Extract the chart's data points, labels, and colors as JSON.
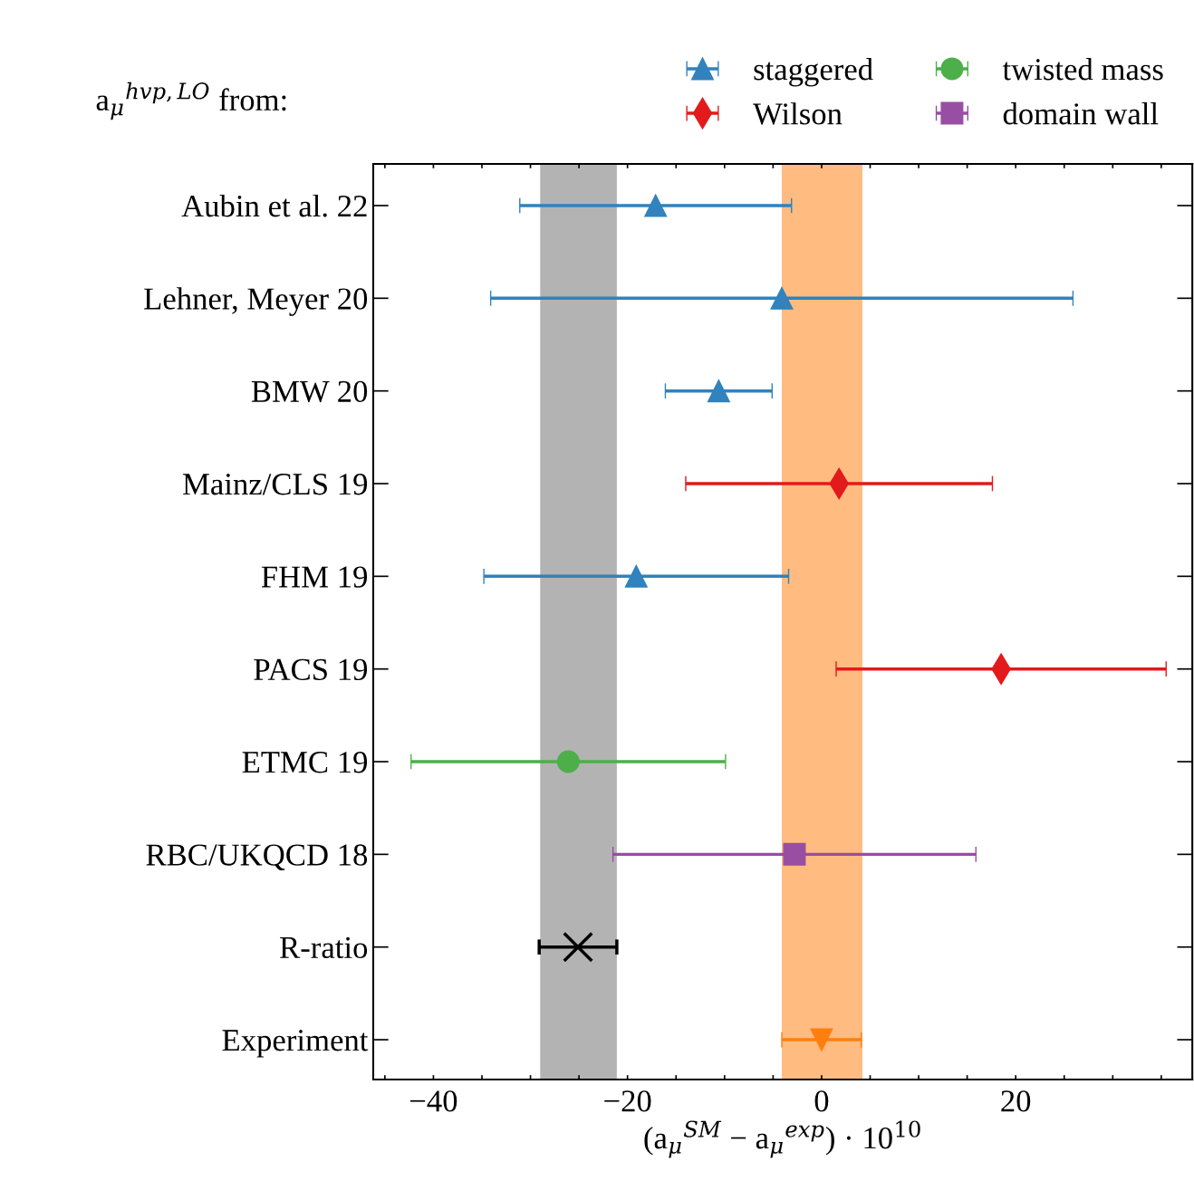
{
  "chart_data": {
    "type": "scatter",
    "orientation": "horizontal",
    "title": "a$_{μ}$$^{hvp,LO}$ from:",
    "xlabel": "(a$_{μ}$$^{SM}$ − a$_{μ}$$^{exp}$) · 10$^{10}$",
    "categories": [
      "Aubin et al. 22",
      "Lehner, Meyer 20",
      "BMW 20",
      "Mainz/CLS 19",
      "FHM 19",
      "PACS 19",
      "ETMC 19",
      "RBC/UKQCD 18",
      "R-ratio",
      "Experiment"
    ],
    "xlim": [
      -46.2,
      38.2
    ],
    "xticks": [
      {
        "value": -45,
        "label": null
      },
      -40,
      {
        "value": -35,
        "label": null
      },
      {
        "value": -30,
        "label": null
      },
      {
        "value": -25,
        "label": null
      },
      -20,
      {
        "value": -15,
        "label": null
      },
      {
        "value": -10,
        "label": null
      },
      {
        "value": -5,
        "label": null
      },
      0,
      {
        "value": 5,
        "label": null
      },
      {
        "value": 10,
        "label": null
      },
      {
        "value": 15,
        "label": null
      },
      20,
      {
        "value": 25,
        "label": null
      },
      {
        "value": 30,
        "label": null
      },
      {
        "value": 35,
        "label": null
      }
    ],
    "bands": [
      {
        "axis": "x",
        "from": -29.0,
        "to": -21.1,
        "color": "#b3b3b3"
      },
      {
        "axis": "x",
        "from": -4.1,
        "to": 4.2,
        "color": "#ffbb80"
      }
    ],
    "legend": "top right",
    "series": [
      {
        "name": "staggered",
        "color": "#3182bd",
        "marker": "triangle",
        "values": [
          -17.1,
          -4.1,
          -10.6,
          null,
          -19.1,
          null,
          null,
          null,
          null,
          null
        ],
        "errors": [
          14.0,
          30.0,
          5.5,
          null,
          15.7,
          null,
          null,
          null,
          null,
          null
        ]
      },
      {
        "name": "Wilson",
        "color": "#e31a1c",
        "marker": "diamond",
        "values": [
          null,
          null,
          null,
          1.8,
          null,
          18.5,
          null,
          null,
          null,
          null
        ],
        "errors": [
          null,
          null,
          null,
          15.8,
          null,
          17.0,
          null,
          null,
          null,
          null
        ]
      },
      {
        "name": "twisted mass",
        "color": "#4daf4a",
        "marker": "circle",
        "values": [
          null,
          null,
          null,
          null,
          null,
          null,
          -26.1,
          null,
          null,
          null
        ],
        "errors": [
          null,
          null,
          null,
          null,
          null,
          null,
          16.2,
          null,
          null,
          null
        ]
      },
      {
        "name": "domain wall",
        "color": "#984ea3",
        "marker": "square",
        "values": [
          null,
          null,
          null,
          null,
          null,
          null,
          null,
          -2.8,
          null,
          null
        ],
        "errors": [
          null,
          null,
          null,
          null,
          null,
          null,
          null,
          18.7,
          null,
          null
        ]
      },
      {
        "color": "#000000",
        "marker": "cross",
        "values": [
          null,
          null,
          null,
          null,
          null,
          null,
          null,
          null,
          -25.1,
          null
        ],
        "errors": [
          null,
          null,
          null,
          null,
          null,
          null,
          null,
          null,
          4.0,
          null
        ]
      },
      {
        "color": "#ff7f0e",
        "marker": "triangle_down",
        "values": [
          null,
          null,
          null,
          null,
          null,
          null,
          null,
          null,
          null,
          0.0
        ],
        "errors": [
          null,
          null,
          null,
          null,
          null,
          null,
          null,
          null,
          null,
          4.1
        ]
      }
    ]
  }
}
